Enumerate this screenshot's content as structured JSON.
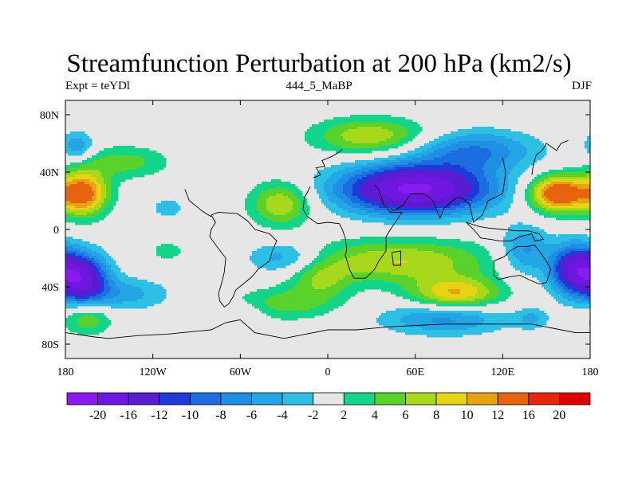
{
  "title": "Streamfunction Perturbation at 200 hPa (km2/s)",
  "left_label": "Expt = teYDl",
  "center_label": "444_5_MaBP",
  "right_label": "DJF",
  "y_ticks": [
    {
      "label": "80N",
      "lat": 80
    },
    {
      "label": "40N",
      "lat": 40
    },
    {
      "label": "0",
      "lat": 0
    },
    {
      "label": "40S",
      "lat": -40
    },
    {
      "label": "80S",
      "lat": -80
    }
  ],
  "x_ticks": [
    {
      "label": "180",
      "lon": -180
    },
    {
      "label": "120W",
      "lon": -120
    },
    {
      "label": "60W",
      "lon": -60
    },
    {
      "label": "0",
      "lon": 0
    },
    {
      "label": "60E",
      "lon": 60
    },
    {
      "label": "120E",
      "lon": 120
    },
    {
      "label": "180",
      "lon": 180
    }
  ],
  "legend": {
    "labels": [
      "-20",
      "-16",
      "-12",
      "-10",
      "-8",
      "-6",
      "-4",
      "-2",
      "2",
      "4",
      "6",
      "8",
      "10",
      "12",
      "16",
      "20"
    ],
    "colors": [
      "#8a1bf0",
      "#6f16e0",
      "#5a1cd0",
      "#1e3ad8",
      "#1c6de0",
      "#1f8fe4",
      "#24a6e6",
      "#2dc0e4",
      "#e6e6e6",
      "#14d48a",
      "#5ad22c",
      "#a8d81c",
      "#e6d414",
      "#e6a412",
      "#e6640e",
      "#e6280a",
      "#e00000"
    ]
  },
  "fields": [
    {
      "name": "central-pacific-high",
      "lon": -168,
      "lat": 25,
      "slon": 12,
      "slat": 11,
      "value": 14
    },
    {
      "name": "east-pacific-ridge",
      "lon": -140,
      "lat": 47,
      "slon": 22,
      "slat": 8,
      "value": 5
    },
    {
      "name": "north-pacific-low",
      "lon": -172,
      "lat": 58,
      "slon": 8,
      "slat": 7,
      "value": -6
    },
    {
      "name": "south-pacific-low",
      "lon": -168,
      "lat": -34,
      "slon": 12,
      "slat": 12,
      "value": -16
    },
    {
      "name": "south-pacific-trough",
      "lon": -140,
      "lat": -45,
      "slon": 22,
      "slat": 8,
      "value": -5
    },
    {
      "name": "southern-ocean-ridge",
      "lon": -165,
      "lat": -62,
      "slon": 12,
      "slat": 8,
      "value": 6
    },
    {
      "name": "central-pacific-blob",
      "lon": -110,
      "lat": 15,
      "slon": 9,
      "slat": 6,
      "value": -3
    },
    {
      "name": "tropical-pacific-blip",
      "lon": -110,
      "lat": -15,
      "slon": 7,
      "slat": 4,
      "value": 4
    },
    {
      "name": "atlantic-ridge",
      "lon": -32,
      "lat": 18,
      "slon": 15,
      "slat": 11,
      "value": 8
    },
    {
      "name": "south-atlantic-low",
      "lon": -30,
      "lat": -20,
      "slon": 18,
      "slat": 8,
      "value": -6
    },
    {
      "name": "south-atlantic-ridge",
      "lon": -30,
      "lat": -52,
      "slon": 25,
      "slat": 8,
      "value": 5
    },
    {
      "name": "southern-trough",
      "lon": -60,
      "lat": -58,
      "slon": 12,
      "slat": 5,
      "value": -3
    },
    {
      "name": "africa-high",
      "lon": -5,
      "lat": -35,
      "slon": 15,
      "slat": 10,
      "value": 5
    },
    {
      "name": "europe-ridge",
      "lon": 30,
      "lat": 65,
      "slon": 28,
      "slat": 9,
      "value": 8
    },
    {
      "name": "central-asia-low",
      "lon": 60,
      "lat": 28,
      "slon": 36,
      "slat": 12,
      "value": -21
    },
    {
      "name": "tibet-ridge",
      "lon": 50,
      "lat": -22,
      "slon": 45,
      "slat": 11,
      "value": 8
    },
    {
      "name": "indian-ocean-high",
      "lon": 88,
      "lat": -45,
      "slon": 22,
      "slat": 8,
      "value": 10
    },
    {
      "name": "southern-indian-trough",
      "lon": 80,
      "lat": -62,
      "slon": 30,
      "slat": 8,
      "value": -7
    },
    {
      "name": "maritime-low",
      "lon": 135,
      "lat": -15,
      "slon": 12,
      "slat": 12,
      "value": -7
    },
    {
      "name": "east-asia-high",
      "lon": 158,
      "lat": 25,
      "slon": 14,
      "slat": 9,
      "value": 16
    },
    {
      "name": "east-asia-low",
      "lon": 100,
      "lat": 55,
      "slon": 30,
      "slat": 10,
      "value": -8
    },
    {
      "name": "west-pacific-low",
      "lon": 170,
      "lat": -28,
      "slon": 12,
      "slat": 12,
      "value": -17
    },
    {
      "name": "australia-ridge",
      "lon": 140,
      "lat": -62,
      "slon": 8,
      "slat": 5,
      "value": -4
    }
  ]
}
